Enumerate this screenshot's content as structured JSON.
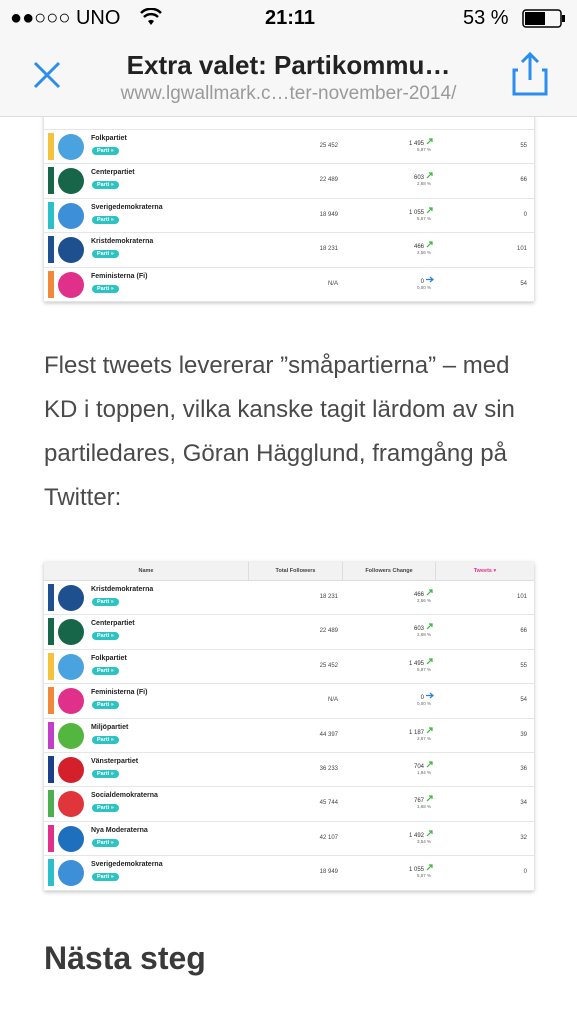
{
  "status_bar": {
    "carrier": "●●○○○ UNO",
    "time": "21:11",
    "battery": "53 %"
  },
  "nav": {
    "title": "Extra valet: Partikommu…",
    "url": "www.lgwallmark.c…ter-november-2014/"
  },
  "table1": {
    "rows": [
      {
        "name": "Folkpartiet",
        "tag": "Parti »",
        "total": "25 452",
        "change": "1 495",
        "percent": "5,87 %",
        "trend": "up",
        "tweets": "55",
        "color": "#f4c23d",
        "logo": "#4aa3df"
      },
      {
        "name": "Centerpartiet",
        "tag": "Parti »",
        "total": "22 489",
        "change": "603",
        "percent": "2,68 %",
        "trend": "up",
        "tweets": "66",
        "color": "#17664a",
        "logo": "#17664a"
      },
      {
        "name": "Sverigedemokraterna",
        "tag": "Parti »",
        "total": "18 949",
        "change": "1 055",
        "percent": "5,57 %",
        "trend": "up",
        "tweets": "0",
        "color": "#2bbfc9",
        "logo": "#3d8fd8"
      },
      {
        "name": "Kristdemokraterna",
        "tag": "Parti »",
        "total": "18 231",
        "change": "466",
        "percent": "2,56 %",
        "trend": "up",
        "tweets": "101",
        "color": "#1e4f8e",
        "logo": "#1e4f8e"
      },
      {
        "name": "Feministerna (Fi)",
        "tag": "Parti »",
        "total": "N/A",
        "change": "0",
        "percent": "0,00 %",
        "trend": "flat",
        "tweets": "54",
        "color": "#f08a3a",
        "logo": "#e0308a"
      }
    ]
  },
  "paragraph": "Flest tweets levererar ”småpartierna” – med KD i toppen, vilka kanske tagit lärdom av sin partiledares, Göran Hägglund, framgång på Twitter:",
  "table2": {
    "header": [
      "Name",
      "Total Followers",
      "Followers Change",
      "Tweets ▾"
    ],
    "rows": [
      {
        "name": "Kristdemokraterna",
        "tag": "Parti »",
        "total": "18 231",
        "change": "466",
        "percent": "2,56 %",
        "trend": "up",
        "tweets": "101",
        "color": "#1e4f8e",
        "logo": "#1e4f8e"
      },
      {
        "name": "Centerpartiet",
        "tag": "Parti »",
        "total": "22 489",
        "change": "603",
        "percent": "2,68 %",
        "trend": "up",
        "tweets": "66",
        "color": "#17664a",
        "logo": "#17664a"
      },
      {
        "name": "Folkpartiet",
        "tag": "Parti »",
        "total": "25 452",
        "change": "1 495",
        "percent": "5,87 %",
        "trend": "up",
        "tweets": "55",
        "color": "#f4c23d",
        "logo": "#4aa3df"
      },
      {
        "name": "Feministerna (Fi)",
        "tag": "Parti »",
        "total": "N/A",
        "change": "0",
        "percent": "0,00 %",
        "trend": "flat",
        "tweets": "54",
        "color": "#f08a3a",
        "logo": "#e0308a"
      },
      {
        "name": "Miljöpartiet",
        "tag": "Parti »",
        "total": "44 397",
        "change": "1 187",
        "percent": "2,67 %",
        "trend": "up",
        "tweets": "39",
        "color": "#c13fc6",
        "logo": "#53b63e"
      },
      {
        "name": "Vänsterpartiet",
        "tag": "Parti »",
        "total": "36 233",
        "change": "704",
        "percent": "1,94 %",
        "trend": "up",
        "tweets": "36",
        "color": "#1c3f8a",
        "logo": "#d4202a"
      },
      {
        "name": "Socialdemokraterna",
        "tag": "Parti »",
        "total": "45 744",
        "change": "767",
        "percent": "1,68 %",
        "trend": "up",
        "tweets": "34",
        "color": "#4cb050",
        "logo": "#e0353a"
      },
      {
        "name": "Nya Moderaterna",
        "tag": "Parti »",
        "total": "42 107",
        "change": "1 492",
        "percent": "3,54 %",
        "trend": "up",
        "tweets": "32",
        "color": "#e0308a",
        "logo": "#1f6fbf"
      },
      {
        "name": "Sverigedemokraterna",
        "tag": "Parti »",
        "total": "18 949",
        "change": "1 055",
        "percent": "5,57 %",
        "trend": "up",
        "tweets": "0",
        "color": "#2bbfc9",
        "logo": "#3d8fd8"
      }
    ]
  },
  "heading": "Nästa steg"
}
